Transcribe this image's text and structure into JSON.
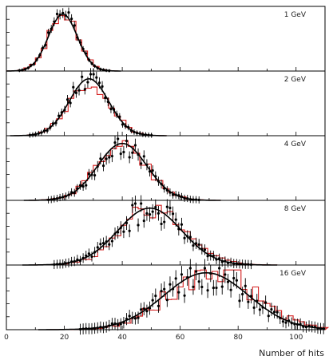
{
  "chart_data": {
    "type": "histogram",
    "xlabel": "Number of hits",
    "xlim": [
      0,
      110
    ],
    "xticks": [
      "0",
      "20",
      "40",
      "60",
      "80",
      "100"
    ],
    "grid": false,
    "legend": "none",
    "colors": {
      "histogram": "#d41e1e",
      "fit": "#000000",
      "points": "#000000",
      "frame": "#000000"
    },
    "panels": [
      {
        "energy_label": "1 GeV",
        "mean": 19.5,
        "sigma": 5.0
      },
      {
        "energy_label": "2 GeV",
        "mean": 28.5,
        "sigma": 6.8
      },
      {
        "energy_label": "4 GeV",
        "mean": 40.0,
        "sigma": 8.5
      },
      {
        "energy_label": "8 GeV",
        "mean": 49.5,
        "sigma": 11.0
      },
      {
        "energy_label": "16 GeV",
        "mean": 69.0,
        "sigma": 14.5
      }
    ]
  }
}
